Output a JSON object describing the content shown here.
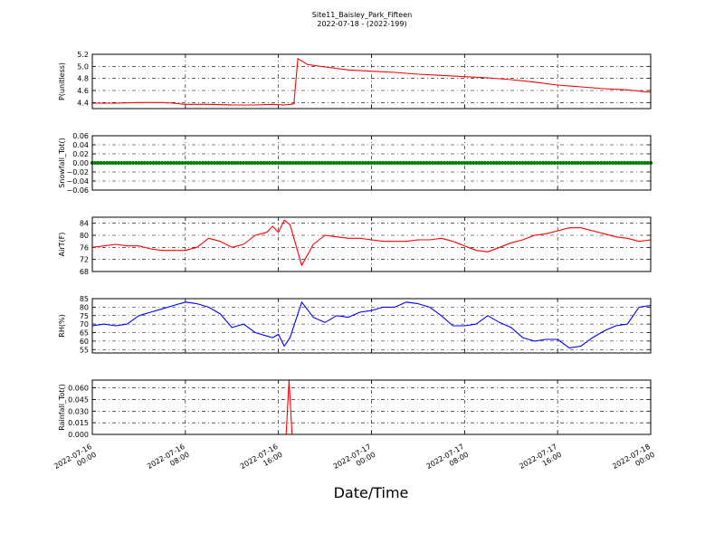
{
  "figure": {
    "title": "Site11_Baisley_Park_Fifteen",
    "subtitle": "2022-07-18 - (2022-199)",
    "xlabel": "Date/Time"
  },
  "chart_data": [
    {
      "type": "line",
      "ylabel": "P(unitless)",
      "ylim": [
        4.3,
        5.2
      ],
      "yticks": [
        "4.4",
        "4.6",
        "4.8",
        "5.0",
        "5.2"
      ],
      "xlim": [
        "2022-07-16 00:00",
        "2022-07-18 00:00"
      ],
      "xticks": [
        "2022-07-16 00:00",
        "2022-07-16 08:00",
        "2022-07-16 16:00",
        "2022-07-17 00:00",
        "2022-07-17 08:00",
        "2022-07-17 16:00",
        "2022-07-18 00:00"
      ],
      "grid": true,
      "color": "#ff0000",
      "x": [
        "2022-07-16 00:00",
        "2022-07-16 02:00",
        "2022-07-16 04:00",
        "2022-07-16 06:00",
        "2022-07-16 07:00",
        "2022-07-16 08:00",
        "2022-07-16 10:00",
        "2022-07-16 12:00",
        "2022-07-16 14:00",
        "2022-07-16 15:30",
        "2022-07-16 16:30",
        "2022-07-16 17:00",
        "2022-07-16 17:20",
        "2022-07-16 17:40",
        "2022-07-16 18:30",
        "2022-07-16 20:00",
        "2022-07-16 22:00",
        "2022-07-17 00:00",
        "2022-07-17 02:00",
        "2022-07-17 04:00",
        "2022-07-17 06:00",
        "2022-07-17 08:00",
        "2022-07-17 10:00",
        "2022-07-17 12:00",
        "2022-07-17 14:00",
        "2022-07-17 16:00",
        "2022-07-17 18:00",
        "2022-07-17 20:00",
        "2022-07-17 22:00",
        "2022-07-18 00:00"
      ],
      "series": [
        {
          "values": [
            4.39,
            4.39,
            4.4,
            4.4,
            4.39,
            4.37,
            4.37,
            4.36,
            4.36,
            4.37,
            4.36,
            4.37,
            4.38,
            5.13,
            5.03,
            4.99,
            4.94,
            4.92,
            4.9,
            4.87,
            4.85,
            4.83,
            4.81,
            4.78,
            4.74,
            4.69,
            4.66,
            4.63,
            4.61,
            4.57
          ]
        }
      ]
    },
    {
      "type": "scatter",
      "ylabel": "Snowfall_Tot()",
      "ylim": [
        -0.06,
        0.06
      ],
      "yticks": [
        "−0.06",
        "−0.04",
        "−0.02",
        "0.00",
        "0.02",
        "0.04",
        "0.06"
      ],
      "xlim": [
        "2022-07-16 00:00",
        "2022-07-18 00:00"
      ],
      "grid": true,
      "color": "#008000",
      "series": [
        {
          "constant_value": 0.0,
          "interval_minutes": 15
        }
      ]
    },
    {
      "type": "line",
      "ylabel": "AirT(F)",
      "ylim": [
        68,
        86
      ],
      "yticks": [
        "68",
        "72",
        "76",
        "80",
        "84"
      ],
      "xlim": [
        "2022-07-16 00:00",
        "2022-07-18 00:00"
      ],
      "grid": true,
      "color": "#ff0000",
      "x": [
        "2022-07-16 00:00",
        "2022-07-16 01:00",
        "2022-07-16 02:00",
        "2022-07-16 03:00",
        "2022-07-16 04:00",
        "2022-07-16 05:00",
        "2022-07-16 06:00",
        "2022-07-16 07:00",
        "2022-07-16 08:00",
        "2022-07-16 09:00",
        "2022-07-16 10:00",
        "2022-07-16 11:00",
        "2022-07-16 12:00",
        "2022-07-16 13:00",
        "2022-07-16 14:00",
        "2022-07-16 15:00",
        "2022-07-16 15:30",
        "2022-07-16 16:00",
        "2022-07-16 16:30",
        "2022-07-16 17:00",
        "2022-07-16 18:00",
        "2022-07-16 19:00",
        "2022-07-16 20:00",
        "2022-07-16 21:00",
        "2022-07-16 22:00",
        "2022-07-16 23:00",
        "2022-07-17 00:00",
        "2022-07-17 01:00",
        "2022-07-17 02:00",
        "2022-07-17 03:00",
        "2022-07-17 04:00",
        "2022-07-17 05:00",
        "2022-07-17 06:00",
        "2022-07-17 07:00",
        "2022-07-17 08:00",
        "2022-07-17 09:00",
        "2022-07-17 10:00",
        "2022-07-17 11:00",
        "2022-07-17 12:00",
        "2022-07-17 13:00",
        "2022-07-17 14:00",
        "2022-07-17 15:00",
        "2022-07-17 16:00",
        "2022-07-17 17:00",
        "2022-07-17 18:00",
        "2022-07-17 19:00",
        "2022-07-17 20:00",
        "2022-07-17 21:00",
        "2022-07-17 22:00",
        "2022-07-17 23:00",
        "2022-07-18 00:00"
      ],
      "series": [
        {
          "values": [
            76,
            76.5,
            77,
            76.5,
            76.5,
            75.5,
            75,
            75,
            75,
            76,
            79,
            78,
            76,
            77,
            80,
            81,
            83,
            81,
            85,
            83.5,
            70,
            77,
            80,
            79.5,
            79,
            79,
            78.5,
            78,
            78,
            78,
            78.5,
            78.5,
            79,
            78,
            76.5,
            75,
            74.5,
            76,
            77.5,
            78.5,
            80,
            80.5,
            81.5,
            82.5,
            82.5,
            81.5,
            80.5,
            79.5,
            79,
            78,
            78.5
          ]
        }
      ]
    },
    {
      "type": "line",
      "ylabel": "RH(%)",
      "ylim": [
        53,
        85
      ],
      "yticks": [
        "55",
        "60",
        "65",
        "70",
        "75",
        "80",
        "85"
      ],
      "xlim": [
        "2022-07-16 00:00",
        "2022-07-18 00:00"
      ],
      "grid": true,
      "color": "#0000ff",
      "x": [
        "2022-07-16 00:00",
        "2022-07-16 01:00",
        "2022-07-16 02:00",
        "2022-07-16 03:00",
        "2022-07-16 04:00",
        "2022-07-16 05:00",
        "2022-07-16 06:00",
        "2022-07-16 07:00",
        "2022-07-16 08:00",
        "2022-07-16 09:00",
        "2022-07-16 10:00",
        "2022-07-16 11:00",
        "2022-07-16 12:00",
        "2022-07-16 13:00",
        "2022-07-16 14:00",
        "2022-07-16 15:00",
        "2022-07-16 15:30",
        "2022-07-16 16:00",
        "2022-07-16 16:30",
        "2022-07-16 17:00",
        "2022-07-16 18:00",
        "2022-07-16 19:00",
        "2022-07-16 20:00",
        "2022-07-16 21:00",
        "2022-07-16 22:00",
        "2022-07-16 23:00",
        "2022-07-17 00:00",
        "2022-07-17 01:00",
        "2022-07-17 02:00",
        "2022-07-17 03:00",
        "2022-07-17 04:00",
        "2022-07-17 05:00",
        "2022-07-17 06:00",
        "2022-07-17 07:00",
        "2022-07-17 08:00",
        "2022-07-17 09:00",
        "2022-07-17 10:00",
        "2022-07-17 11:00",
        "2022-07-17 12:00",
        "2022-07-17 13:00",
        "2022-07-17 14:00",
        "2022-07-17 15:00",
        "2022-07-17 16:00",
        "2022-07-17 17:00",
        "2022-07-17 18:00",
        "2022-07-17 19:00",
        "2022-07-17 20:00",
        "2022-07-17 21:00",
        "2022-07-17 22:00",
        "2022-07-17 23:00",
        "2022-07-18 00:00"
      ],
      "series": [
        {
          "values": [
            69,
            70,
            69,
            70,
            75,
            77,
            79,
            81,
            83,
            82,
            80,
            76,
            68,
            70,
            65,
            63,
            62,
            64,
            57,
            62,
            83,
            74,
            71,
            75,
            74,
            77,
            78,
            80,
            80,
            83,
            82,
            80,
            75,
            69,
            69,
            70,
            75,
            71,
            68,
            62,
            60,
            61,
            61,
            56,
            57,
            62,
            66,
            69,
            70,
            80,
            81
          ]
        }
      ]
    },
    {
      "type": "line",
      "ylabel": "Rainfall_Tot()",
      "ylim": [
        0,
        0.07
      ],
      "yticks": [
        "0.000",
        "0.015",
        "0.030",
        "0.045",
        "0.060"
      ],
      "xlim": [
        "2022-07-16 00:00",
        "2022-07-18 00:00"
      ],
      "grid": true,
      "color": "#ff0000",
      "x": [
        "2022-07-16 00:00",
        "2022-07-16 16:40",
        "2022-07-16 16:55",
        "2022-07-16 17:10",
        "2022-07-18 00:00"
      ],
      "series": [
        {
          "values": [
            0,
            0,
            0.07,
            0,
            0
          ]
        }
      ]
    }
  ]
}
